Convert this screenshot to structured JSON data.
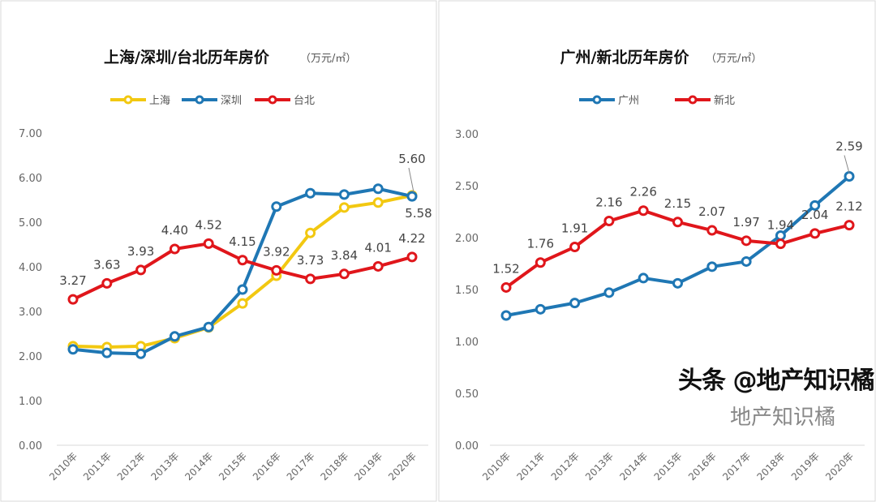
{
  "chart_data": [
    {
      "type": "line",
      "title": "上海/深圳/台北历年房价",
      "unit": "（万元/㎡）",
      "categories": [
        "2010年",
        "2011年",
        "2012年",
        "2013年",
        "2014年",
        "2015年",
        "2016年",
        "2017年",
        "2018年",
        "2019年",
        "2020年"
      ],
      "ylim": [
        0,
        7
      ],
      "yticks": [
        "0.00",
        "1.00",
        "2.00",
        "3.00",
        "4.00",
        "5.00",
        "6.00",
        "7.00"
      ],
      "legend": "top",
      "series": [
        {
          "name": "上海",
          "color": "#F2C811",
          "values": [
            2.22,
            2.2,
            2.22,
            2.4,
            2.64,
            3.18,
            3.8,
            4.76,
            5.33,
            5.44,
            5.6
          ],
          "labels": {
            "10": "5.60"
          }
        },
        {
          "name": "深圳",
          "color": "#1F77B4",
          "values": [
            2.15,
            2.07,
            2.05,
            2.44,
            2.65,
            3.49,
            5.35,
            5.65,
            5.62,
            5.75,
            5.58
          ],
          "labels": {
            "10": "5.58"
          }
        },
        {
          "name": "台北",
          "color": "#E0161B",
          "values": [
            3.27,
            3.63,
            3.93,
            4.4,
            4.52,
            4.15,
            3.92,
            3.73,
            3.84,
            4.01,
            4.22
          ],
          "labels": {
            "0": "3.27",
            "1": "3.63",
            "2": "3.93",
            "3": "4.40",
            "4": "4.52",
            "5": "4.15",
            "6": "3.92",
            "7": "3.73",
            "8": "3.84",
            "9": "4.01",
            "10": "4.22"
          }
        }
      ]
    },
    {
      "type": "line",
      "title": "广州/新北历年房价",
      "unit": "（万元/㎡）",
      "categories": [
        "2010年",
        "2011年",
        "2012年",
        "2013年",
        "2014年",
        "2015年",
        "2016年",
        "2017年",
        "2018年",
        "2019年",
        "2020年"
      ],
      "ylim": [
        0,
        3
      ],
      "yticks": [
        "0.00",
        "0.50",
        "1.00",
        "1.50",
        "2.00",
        "2.50",
        "3.00"
      ],
      "legend": "top",
      "series": [
        {
          "name": "广州",
          "color": "#1F77B4",
          "values": [
            1.25,
            1.31,
            1.37,
            1.47,
            1.61,
            1.56,
            1.72,
            1.77,
            2.02,
            2.31,
            2.59
          ],
          "labels": {
            "10": "2.59"
          }
        },
        {
          "name": "新北",
          "color": "#E0161B",
          "values": [
            1.52,
            1.76,
            1.91,
            2.16,
            2.26,
            2.15,
            2.07,
            1.97,
            1.94,
            2.04,
            2.12
          ],
          "labels": {
            "0": "1.52",
            "1": "1.76",
            "2": "1.91",
            "3": "2.16",
            "4": "2.26",
            "5": "2.15",
            "6": "2.07",
            "7": "1.97",
            "8": "1.94",
            "9": "2.04",
            "10": "2.12"
          }
        }
      ]
    }
  ],
  "watermark": {
    "main": "头条 @地产知识橘",
    "faint": "地产知识橘"
  }
}
